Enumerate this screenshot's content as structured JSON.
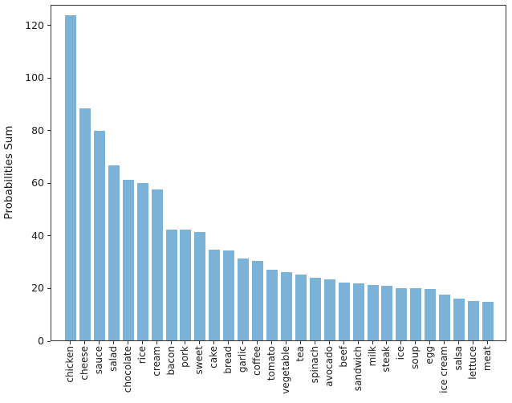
{
  "figure": {
    "background": "#ffffff"
  },
  "chart_data": {
    "type": "bar",
    "title": "",
    "xlabel": "",
    "ylabel": "Probabilities Sum",
    "categories": [
      "chicken",
      "cheese",
      "sauce",
      "salad",
      "chocolate",
      "rice",
      "cream",
      "bacon",
      "pork",
      "sweet",
      "cake",
      "bread",
      "garlic",
      "coffee",
      "tomato",
      "vegetable",
      "tea",
      "spinach",
      "avocado",
      "beef",
      "sandwich",
      "milk",
      "steak",
      "ice",
      "soup",
      "egg",
      "ice cream",
      "salsa",
      "lettuce",
      "meat"
    ],
    "values": [
      123.5,
      88.3,
      79.6,
      66.6,
      60.9,
      59.7,
      57.3,
      42.2,
      42.2,
      41.1,
      34.5,
      34.2,
      31.0,
      30.2,
      26.7,
      26.0,
      25.1,
      23.8,
      23.2,
      22.0,
      21.8,
      21.0,
      20.8,
      19.9,
      19.8,
      19.6,
      17.4,
      15.9,
      14.8,
      14.5
    ],
    "yticks": [
      0,
      20,
      40,
      60,
      80,
      100,
      120
    ],
    "ylim": [
      0,
      127.8
    ],
    "xtick_rotation": 90,
    "grid": false,
    "bar_color": "#7AB2D8",
    "spine_color": "#333333",
    "text_color": "#1a1a1a"
  }
}
